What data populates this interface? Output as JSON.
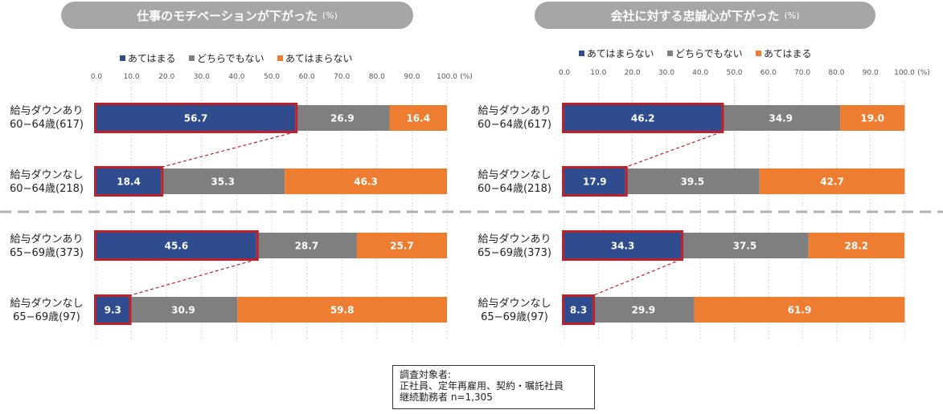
{
  "panels": [
    {
      "title": "仕事のモチベーションが下がった",
      "unit": "(%)",
      "legend": [
        "あてはまる",
        "どちらでもない",
        "あてはまらない"
      ]
    },
    {
      "title": "会社に対する忠誠心が下がった",
      "unit": "(%)",
      "legend": [
        "あてはまらない",
        "どちらでもない",
        "あてはまる"
      ]
    }
  ],
  "row_labels": [
    {
      "line1": "給与ダウンあり",
      "line2": "60−64歳(617)"
    },
    {
      "line1": "給与ダウンなし",
      "line2": "60−64歳(218)"
    },
    {
      "line1": "給与ダウンあり",
      "line2": "65−69歳(373)"
    },
    {
      "line1": "給与ダウンなし",
      "line2": "65−69歳(97)"
    }
  ],
  "note": {
    "line1": "調査対象者:",
    "line2": "正社員、定年再雇用、契約・嘱託社員",
    "line3": "継続勤務者 n=1,305"
  },
  "colors": {
    "blue": "#2f4c8f",
    "gray": "#7f7f7f",
    "orange": "#ed7d31",
    "highlight": "#c0202a"
  },
  "chart_data": [
    {
      "type": "bar",
      "orientation": "horizontal",
      "stacked": true,
      "title": "仕事のモチベーションが下がった",
      "xlim": [
        0,
        100
      ],
      "x_ticks": [
        "0.0",
        "10.0",
        "20.0",
        "30.0",
        "40.0",
        "50.0",
        "60.0",
        "70.0",
        "80.0",
        "90.0",
        "100.0"
      ],
      "x_unit": "(%)",
      "categories": [
        "給与ダウンあり 60−64歳(617)",
        "給与ダウンなし 60−64歳(218)",
        "給与ダウンあり 65−69歳(373)",
        "給与ダウンなし 65−69歳(97)"
      ],
      "series": [
        {
          "name": "あてはまる",
          "values": [
            56.7,
            18.4,
            45.6,
            9.3
          ]
        },
        {
          "name": "どちらでもない",
          "values": [
            26.9,
            35.3,
            28.7,
            30.9
          ]
        },
        {
          "name": "あてはまらない",
          "values": [
            16.4,
            46.3,
            25.7,
            59.8
          ]
        }
      ],
      "legend_position": "top"
    },
    {
      "type": "bar",
      "orientation": "horizontal",
      "stacked": true,
      "title": "会社に対する忠誠心が下がった",
      "xlim": [
        0,
        100
      ],
      "x_ticks": [
        "0.0",
        "10.0",
        "20.0",
        "30.0",
        "40.0",
        "50.0",
        "60.0",
        "70.0",
        "80.0",
        "90.0",
        "100.0"
      ],
      "x_unit": "(%)",
      "categories": [
        "給与ダウンあり 60−64歳(617)",
        "給与ダウンなし 60−64歳(218)",
        "給与ダウンあり 65−69歳(373)",
        "給与ダウンなし 65−69歳(97)"
      ],
      "series": [
        {
          "name": "あてはまらない",
          "values": [
            46.2,
            17.9,
            34.3,
            8.3
          ]
        },
        {
          "name": "どちらでもない",
          "values": [
            34.9,
            39.5,
            37.5,
            29.9
          ]
        },
        {
          "name": "あてはまる",
          "values": [
            19.0,
            42.7,
            28.2,
            61.9
          ]
        }
      ],
      "legend_position": "top"
    }
  ]
}
